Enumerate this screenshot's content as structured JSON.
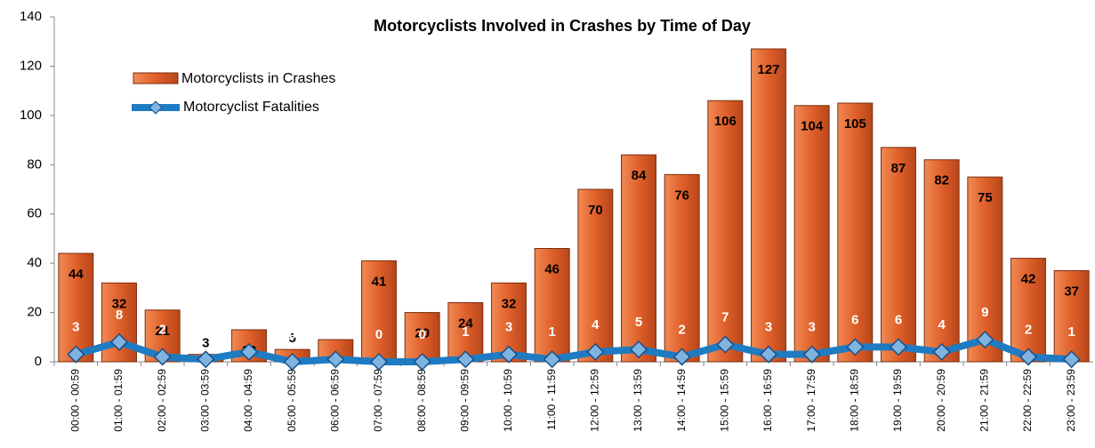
{
  "chart_data": {
    "type": "bar",
    "title": "Motorcyclists Involved in Crashes by Time of Day",
    "categories": [
      "00:00 - 00:59",
      "01:00 - 01:59",
      "02:00 - 02:59",
      "03:00 - 03:59",
      "04:00 - 04:59",
      "05:00 - 05:59",
      "06:00 - 06:59",
      "07:00 - 07:59",
      "08:00 - 08:59",
      "09:00 - 09:59",
      "10:00 - 10:59",
      "11:00 - 11:59",
      "12:00 - 12:59",
      "13:00 - 13:59",
      "14:00 - 14:59",
      "15:00 - 15:59",
      "16:00 - 16:59",
      "17:00 - 17:59",
      "18:00 - 18:59",
      "19:00 - 19:59",
      "20:00 - 20:59",
      "21:00 - 21:59",
      "22:00 - 22:59",
      "23:00 - 23:59"
    ],
    "series": [
      {
        "name": "Motorcyclists in Crashes",
        "type": "bar",
        "color": "#e0602a",
        "values": [
          44,
          32,
          21,
          3,
          13,
          5,
          9,
          41,
          20,
          24,
          32,
          46,
          70,
          84,
          76,
          106,
          127,
          104,
          105,
          87,
          82,
          75,
          42,
          37
        ]
      },
      {
        "name": "Motorcyclist Fatalities",
        "type": "line",
        "color": "#1f7bc2",
        "values": [
          3,
          8,
          2,
          1,
          4,
          0,
          1,
          0,
          0,
          1,
          3,
          1,
          4,
          5,
          2,
          7,
          3,
          3,
          6,
          6,
          4,
          9,
          2,
          1
        ]
      }
    ],
    "ylim": [
      0,
      140
    ],
    "yticks": [
      0,
      20,
      40,
      60,
      80,
      100,
      120,
      140
    ]
  }
}
